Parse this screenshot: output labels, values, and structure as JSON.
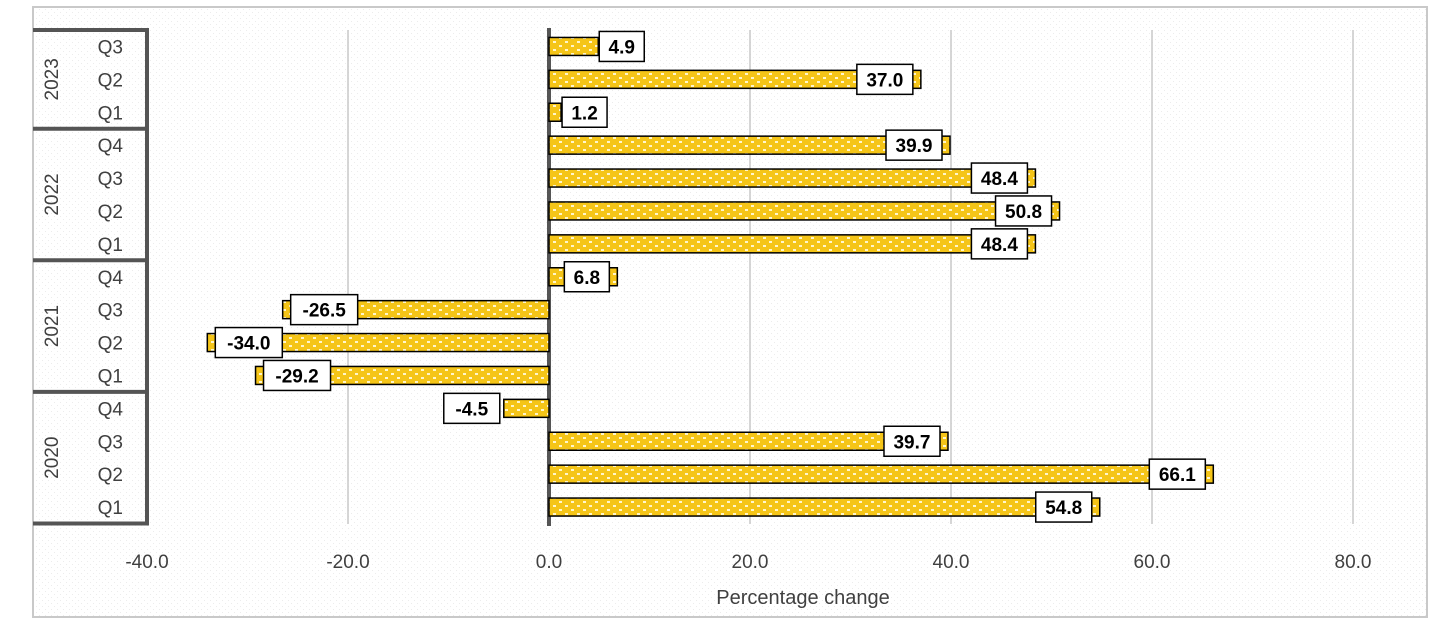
{
  "chart_data": {
    "type": "bar",
    "orientation": "horizontal",
    "xlabel": "Percentage change",
    "xlim": [
      -40,
      80
    ],
    "xticks": [
      -40,
      -20,
      0,
      20,
      40,
      60,
      80
    ],
    "xtick_labels": [
      "-40.0",
      "-20.0",
      "0.0",
      "20.0",
      "40.0",
      "60.0",
      "80.0"
    ],
    "grid": "vertical",
    "legend": "none",
    "groups": [
      {
        "label": "2023",
        "categories": [
          {
            "label": "Q3",
            "value": 4.9,
            "data_label": "4.9"
          },
          {
            "label": "Q2",
            "value": 37.0,
            "data_label": "37.0"
          },
          {
            "label": "Q1",
            "value": 1.2,
            "data_label": "1.2"
          }
        ]
      },
      {
        "label": "2022",
        "categories": [
          {
            "label": "Q4",
            "value": 39.9,
            "data_label": "39.9"
          },
          {
            "label": "Q3",
            "value": 48.4,
            "data_label": "48.4"
          },
          {
            "label": "Q2",
            "value": 50.8,
            "data_label": "50.8"
          },
          {
            "label": "Q1",
            "value": 48.4,
            "data_label": "48.4"
          }
        ]
      },
      {
        "label": "2021",
        "categories": [
          {
            "label": "Q4",
            "value": 6.8,
            "data_label": "6.8"
          },
          {
            "label": "Q3",
            "value": -26.5,
            "data_label": "-26.5"
          },
          {
            "label": "Q2",
            "value": -34.0,
            "data_label": "-34.0"
          },
          {
            "label": "Q1",
            "value": -29.2,
            "data_label": "-29.2"
          }
        ]
      },
      {
        "label": "2020",
        "categories": [
          {
            "label": "Q4",
            "value": -4.5,
            "data_label": "-4.5"
          },
          {
            "label": "Q3",
            "value": 39.7,
            "data_label": "39.7"
          },
          {
            "label": "Q2",
            "value": 66.1,
            "data_label": "66.1"
          },
          {
            "label": "Q1",
            "value": 54.8,
            "data_label": "54.8"
          }
        ]
      }
    ],
    "colors": {
      "bar_fill": "#f5c518",
      "bar_pattern_dots": "#fff6cc",
      "bar_stroke": "#000000",
      "grid": "#c8c8c8",
      "axis": "#555555",
      "text": "#404040"
    }
  }
}
